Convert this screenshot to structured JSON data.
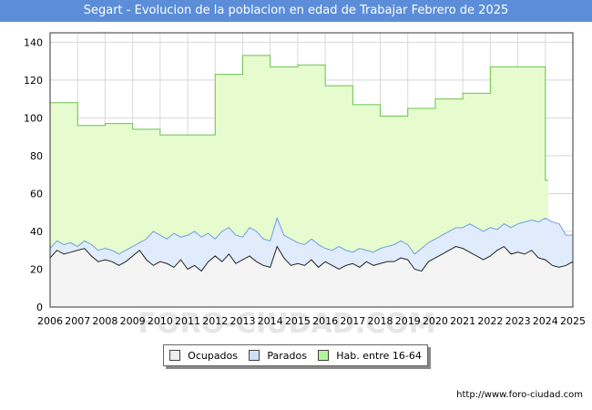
{
  "title": "Segart - Evolucion de la poblacion en edad de Trabajar Febrero de 2025",
  "source": "http://www.foro-ciudad.com",
  "watermark": "FORO-CIUDAD.COM",
  "legend": {
    "ocupados": "Ocupados",
    "parados": "Parados",
    "hab": "Hab. entre 16-64"
  },
  "colors": {
    "title_bg": "#5b8dd9",
    "hab_fill": "#e6fccf",
    "hab_line": "#6cc24a",
    "hab_swatch": "#b3f59a",
    "parados_fill": "#e0ecfb",
    "parados_line": "#6f9de0",
    "parados_swatch": "#cde0f7",
    "ocupados_fill": "#f4f4f4",
    "ocupados_line": "#222222",
    "ocupados_swatch": "#eeeeee"
  },
  "chart_data": {
    "type": "area",
    "title": "Segart - Evolucion de la poblacion en edad de Trabajar Febrero de 2025",
    "xlabel": "",
    "ylabel": "",
    "xlim": [
      2006,
      2025
    ],
    "ylim": [
      0,
      145
    ],
    "x_ticks": [
      "2006",
      "2007",
      "2008",
      "2009",
      "2010",
      "2011",
      "2012",
      "2013",
      "2014",
      "2015",
      "2016",
      "2017",
      "2018",
      "2019",
      "2020",
      "2021",
      "2022",
      "2023",
      "2024",
      "2025"
    ],
    "y_ticks": [
      0,
      20,
      40,
      60,
      80,
      100,
      120,
      140
    ],
    "legend_position": "bottom",
    "hab_16_64": {
      "name": "Hab. entre 16-64",
      "years": [
        2006,
        2007,
        2008,
        2009,
        2010,
        2011,
        2012,
        2013,
        2014,
        2015,
        2016,
        2017,
        2018,
        2019,
        2020,
        2021,
        2022,
        2023,
        2024
      ],
      "values": [
        108,
        96,
        97,
        94,
        91,
        91,
        123,
        133,
        127,
        128,
        117,
        107,
        101,
        105,
        110,
        113,
        127,
        127,
        67
      ]
    },
    "parados": {
      "name": "Parados",
      "x": [
        2006,
        2006.25,
        2006.5,
        2006.75,
        2007,
        2007.25,
        2007.5,
        2007.75,
        2008,
        2008.25,
        2008.5,
        2008.75,
        2009,
        2009.25,
        2009.5,
        2009.75,
        2010,
        2010.25,
        2010.5,
        2010.75,
        2011,
        2011.25,
        2011.5,
        2011.75,
        2012,
        2012.25,
        2012.5,
        2012.75,
        2013,
        2013.25,
        2013.5,
        2013.75,
        2014,
        2014.25,
        2014.5,
        2014.75,
        2015,
        2015.25,
        2015.5,
        2015.75,
        2016,
        2016.25,
        2016.5,
        2016.75,
        2017,
        2017.25,
        2017.5,
        2017.75,
        2018,
        2018.25,
        2018.5,
        2018.75,
        2019,
        2019.25,
        2019.5,
        2019.75,
        2020,
        2020.25,
        2020.5,
        2020.75,
        2021,
        2021.25,
        2021.5,
        2021.75,
        2022,
        2022.25,
        2022.5,
        2022.75,
        2023,
        2023.25,
        2023.5,
        2023.75,
        2024,
        2024.25,
        2024.5,
        2024.75,
        2025
      ],
      "values": [
        31,
        35,
        33,
        34,
        32,
        35,
        33,
        30,
        31,
        30,
        28,
        30,
        32,
        34,
        36,
        40,
        38,
        36,
        39,
        37,
        38,
        40,
        37,
        39,
        36,
        40,
        42,
        38,
        37,
        42,
        40,
        36,
        35,
        47,
        38,
        36,
        34,
        33,
        36,
        33,
        31,
        30,
        32,
        30,
        29,
        31,
        30,
        29,
        31,
        32,
        33,
        35,
        33,
        28,
        31,
        34,
        36,
        38,
        40,
        42,
        42,
        44,
        42,
        40,
        42,
        41,
        44,
        42,
        44,
        45,
        46,
        45,
        47,
        45,
        44,
        38,
        38
      ]
    },
    "ocupados": {
      "name": "Ocupados",
      "x": [
        2006,
        2006.25,
        2006.5,
        2006.75,
        2007,
        2007.25,
        2007.5,
        2007.75,
        2008,
        2008.25,
        2008.5,
        2008.75,
        2009,
        2009.25,
        2009.5,
        2009.75,
        2010,
        2010.25,
        2010.5,
        2010.75,
        2011,
        2011.25,
        2011.5,
        2011.75,
        2012,
        2012.25,
        2012.5,
        2012.75,
        2013,
        2013.25,
        2013.5,
        2013.75,
        2014,
        2014.25,
        2014.5,
        2014.75,
        2015,
        2015.25,
        2015.5,
        2015.75,
        2016,
        2016.25,
        2016.5,
        2016.75,
        2017,
        2017.25,
        2017.5,
        2017.75,
        2018,
        2018.25,
        2018.5,
        2018.75,
        2019,
        2019.25,
        2019.5,
        2019.75,
        2020,
        2020.25,
        2020.5,
        2020.75,
        2021,
        2021.25,
        2021.5,
        2021.75,
        2022,
        2022.25,
        2022.5,
        2022.75,
        2023,
        2023.25,
        2023.5,
        2023.75,
        2024,
        2024.25,
        2024.5,
        2024.75,
        2025
      ],
      "values": [
        26,
        30,
        28,
        29,
        30,
        31,
        27,
        24,
        25,
        24,
        22,
        24,
        27,
        30,
        25,
        22,
        24,
        23,
        21,
        25,
        20,
        22,
        19,
        24,
        27,
        24,
        28,
        23,
        25,
        27,
        24,
        22,
        21,
        32,
        26,
        22,
        23,
        22,
        25,
        21,
        24,
        22,
        20,
        22,
        23,
        21,
        24,
        22,
        23,
        24,
        24,
        26,
        25,
        20,
        19,
        24,
        26,
        28,
        30,
        32,
        31,
        29,
        27,
        25,
        27,
        30,
        32,
        28,
        29,
        28,
        30,
        26,
        25,
        22,
        21,
        22,
        24
      ]
    }
  }
}
